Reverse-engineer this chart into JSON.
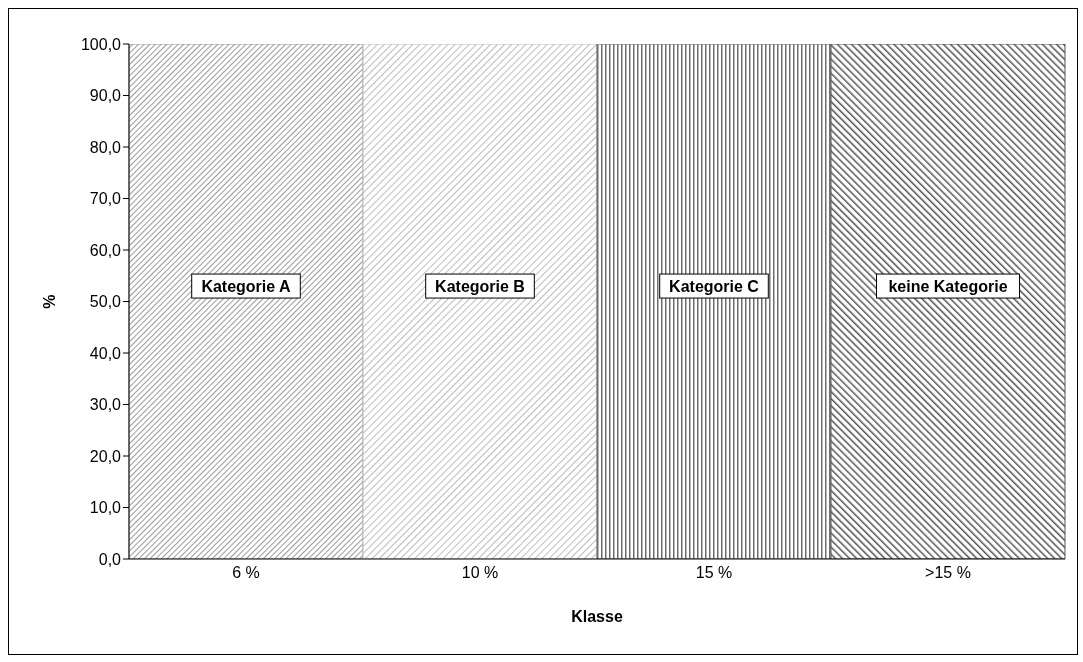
{
  "chart_data": {
    "type": "bar",
    "xlabel": "Klasse",
    "ylabel": "%",
    "categories": [
      "6 %",
      "10 %",
      "15 %",
      ">15 %"
    ],
    "values": [
      100,
      100,
      100,
      100
    ],
    "colors": [
      "#9a9a9a",
      "#bdbdbd",
      "#6e6e6e",
      "#555555"
    ],
    "ylim": [
      0,
      100
    ],
    "yticks": [
      {
        "value": 0,
        "label": "0,0"
      },
      {
        "value": 10,
        "label": "10,0"
      },
      {
        "value": 20,
        "label": "20,0"
      },
      {
        "value": 30,
        "label": "30,0"
      },
      {
        "value": 40,
        "label": "40,0"
      },
      {
        "value": 50,
        "label": "50,0"
      },
      {
        "value": 60,
        "label": "60,0"
      },
      {
        "value": 70,
        "label": "70,0"
      },
      {
        "value": 80,
        "label": "80,0"
      },
      {
        "value": 90,
        "label": "90,0"
      },
      {
        "value": 100,
        "label": "100,0"
      }
    ],
    "annotations": [
      "Kategorie A",
      "Kategorie B",
      "Kategorie C",
      "keine Kategorie"
    ],
    "grid": false
  }
}
